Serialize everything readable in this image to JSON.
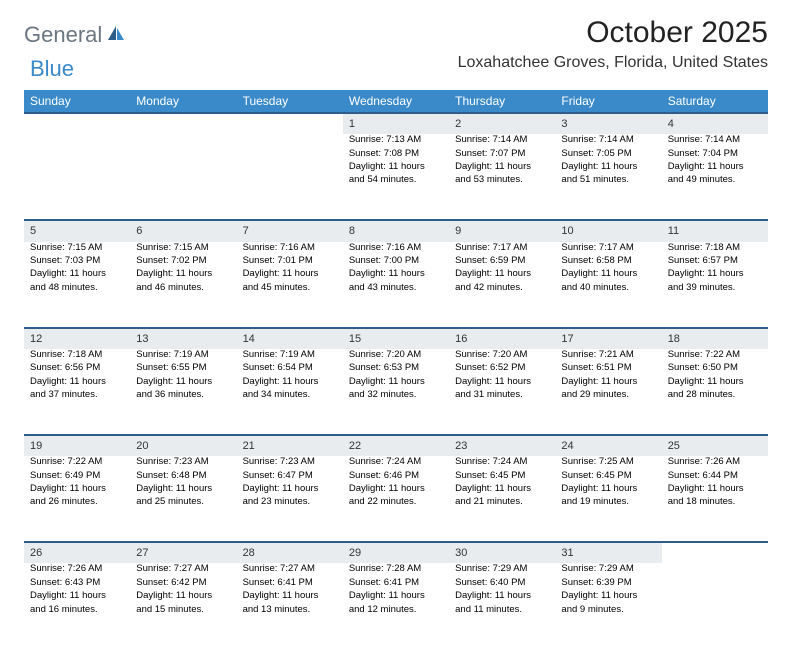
{
  "logo": {
    "general": "General",
    "blue": "Blue"
  },
  "title": "October 2025",
  "location": "Loxahatchee Groves, Florida, United States",
  "colors": {
    "header_bg": "#3a8ac9",
    "header_text": "#ffffff",
    "daynum_bg": "#e8ecef",
    "rule": "#2f5d8a",
    "logo_gray": "#6b7680",
    "logo_blue": "#3a8ac9"
  },
  "day_headers": [
    "Sunday",
    "Monday",
    "Tuesday",
    "Wednesday",
    "Thursday",
    "Friday",
    "Saturday"
  ],
  "weeks": [
    [
      null,
      null,
      null,
      {
        "n": "1",
        "sr": "7:13 AM",
        "ss": "7:08 PM",
        "dh": "11",
        "dm": "54"
      },
      {
        "n": "2",
        "sr": "7:14 AM",
        "ss": "7:07 PM",
        "dh": "11",
        "dm": "53"
      },
      {
        "n": "3",
        "sr": "7:14 AM",
        "ss": "7:05 PM",
        "dh": "11",
        "dm": "51"
      },
      {
        "n": "4",
        "sr": "7:14 AM",
        "ss": "7:04 PM",
        "dh": "11",
        "dm": "49"
      }
    ],
    [
      {
        "n": "5",
        "sr": "7:15 AM",
        "ss": "7:03 PM",
        "dh": "11",
        "dm": "48"
      },
      {
        "n": "6",
        "sr": "7:15 AM",
        "ss": "7:02 PM",
        "dh": "11",
        "dm": "46"
      },
      {
        "n": "7",
        "sr": "7:16 AM",
        "ss": "7:01 PM",
        "dh": "11",
        "dm": "45"
      },
      {
        "n": "8",
        "sr": "7:16 AM",
        "ss": "7:00 PM",
        "dh": "11",
        "dm": "43"
      },
      {
        "n": "9",
        "sr": "7:17 AM",
        "ss": "6:59 PM",
        "dh": "11",
        "dm": "42"
      },
      {
        "n": "10",
        "sr": "7:17 AM",
        "ss": "6:58 PM",
        "dh": "11",
        "dm": "40"
      },
      {
        "n": "11",
        "sr": "7:18 AM",
        "ss": "6:57 PM",
        "dh": "11",
        "dm": "39"
      }
    ],
    [
      {
        "n": "12",
        "sr": "7:18 AM",
        "ss": "6:56 PM",
        "dh": "11",
        "dm": "37"
      },
      {
        "n": "13",
        "sr": "7:19 AM",
        "ss": "6:55 PM",
        "dh": "11",
        "dm": "36"
      },
      {
        "n": "14",
        "sr": "7:19 AM",
        "ss": "6:54 PM",
        "dh": "11",
        "dm": "34"
      },
      {
        "n": "15",
        "sr": "7:20 AM",
        "ss": "6:53 PM",
        "dh": "11",
        "dm": "32"
      },
      {
        "n": "16",
        "sr": "7:20 AM",
        "ss": "6:52 PM",
        "dh": "11",
        "dm": "31"
      },
      {
        "n": "17",
        "sr": "7:21 AM",
        "ss": "6:51 PM",
        "dh": "11",
        "dm": "29"
      },
      {
        "n": "18",
        "sr": "7:22 AM",
        "ss": "6:50 PM",
        "dh": "11",
        "dm": "28"
      }
    ],
    [
      {
        "n": "19",
        "sr": "7:22 AM",
        "ss": "6:49 PM",
        "dh": "11",
        "dm": "26"
      },
      {
        "n": "20",
        "sr": "7:23 AM",
        "ss": "6:48 PM",
        "dh": "11",
        "dm": "25"
      },
      {
        "n": "21",
        "sr": "7:23 AM",
        "ss": "6:47 PM",
        "dh": "11",
        "dm": "23"
      },
      {
        "n": "22",
        "sr": "7:24 AM",
        "ss": "6:46 PM",
        "dh": "11",
        "dm": "22"
      },
      {
        "n": "23",
        "sr": "7:24 AM",
        "ss": "6:45 PM",
        "dh": "11",
        "dm": "21"
      },
      {
        "n": "24",
        "sr": "7:25 AM",
        "ss": "6:45 PM",
        "dh": "11",
        "dm": "19"
      },
      {
        "n": "25",
        "sr": "7:26 AM",
        "ss": "6:44 PM",
        "dh": "11",
        "dm": "18"
      }
    ],
    [
      {
        "n": "26",
        "sr": "7:26 AM",
        "ss": "6:43 PM",
        "dh": "11",
        "dm": "16"
      },
      {
        "n": "27",
        "sr": "7:27 AM",
        "ss": "6:42 PM",
        "dh": "11",
        "dm": "15"
      },
      {
        "n": "28",
        "sr": "7:27 AM",
        "ss": "6:41 PM",
        "dh": "11",
        "dm": "13"
      },
      {
        "n": "29",
        "sr": "7:28 AM",
        "ss": "6:41 PM",
        "dh": "11",
        "dm": "12"
      },
      {
        "n": "30",
        "sr": "7:29 AM",
        "ss": "6:40 PM",
        "dh": "11",
        "dm": "11"
      },
      {
        "n": "31",
        "sr": "7:29 AM",
        "ss": "6:39 PM",
        "dh": "11",
        "dm": "9"
      },
      null
    ]
  ],
  "labels": {
    "sunrise": "Sunrise:",
    "sunset": "Sunset:",
    "daylight_prefix": "Daylight:",
    "hours_word": "hours",
    "and_word": "and",
    "minutes_word": "minutes."
  }
}
